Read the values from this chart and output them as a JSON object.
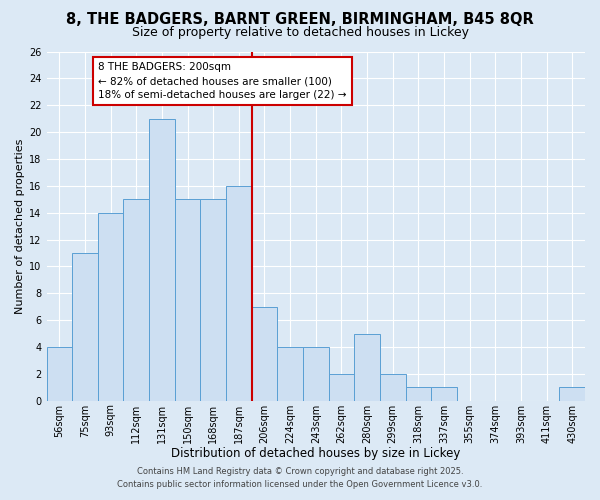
{
  "title1": "8, THE BADGERS, BARNT GREEN, BIRMINGHAM, B45 8QR",
  "title2": "Size of property relative to detached houses in Lickey",
  "xlabel": "Distribution of detached houses by size in Lickey",
  "ylabel": "Number of detached properties",
  "categories": [
    "56sqm",
    "75sqm",
    "93sqm",
    "112sqm",
    "131sqm",
    "150sqm",
    "168sqm",
    "187sqm",
    "206sqm",
    "224sqm",
    "243sqm",
    "262sqm",
    "280sqm",
    "299sqm",
    "318sqm",
    "337sqm",
    "355sqm",
    "374sqm",
    "393sqm",
    "411sqm",
    "430sqm"
  ],
  "values": [
    4,
    11,
    14,
    15,
    21,
    15,
    15,
    16,
    7,
    4,
    4,
    2,
    5,
    2,
    1,
    1,
    0,
    0,
    0,
    0,
    1
  ],
  "bar_color": "#cddff2",
  "bar_edge_color": "#5a9fd4",
  "vline_color": "#cc0000",
  "annotation_line1": "8 THE BADGERS: 200sqm",
  "annotation_line2": "← 82% of detached houses are smaller (100)",
  "annotation_line3": "18% of semi-detached houses are larger (22) →",
  "annotation_box_color": "#ffffff",
  "annotation_box_edge": "#cc0000",
  "ylim": [
    0,
    26
  ],
  "yticks": [
    0,
    2,
    4,
    6,
    8,
    10,
    12,
    14,
    16,
    18,
    20,
    22,
    24,
    26
  ],
  "bg_color": "#dce9f5",
  "footer1": "Contains HM Land Registry data © Crown copyright and database right 2025.",
  "footer2": "Contains public sector information licensed under the Open Government Licence v3.0.",
  "title1_fontsize": 10.5,
  "title2_fontsize": 9,
  "xlabel_fontsize": 8.5,
  "ylabel_fontsize": 8,
  "tick_fontsize": 7,
  "footer_fontsize": 6,
  "ann_fontsize": 7.5
}
